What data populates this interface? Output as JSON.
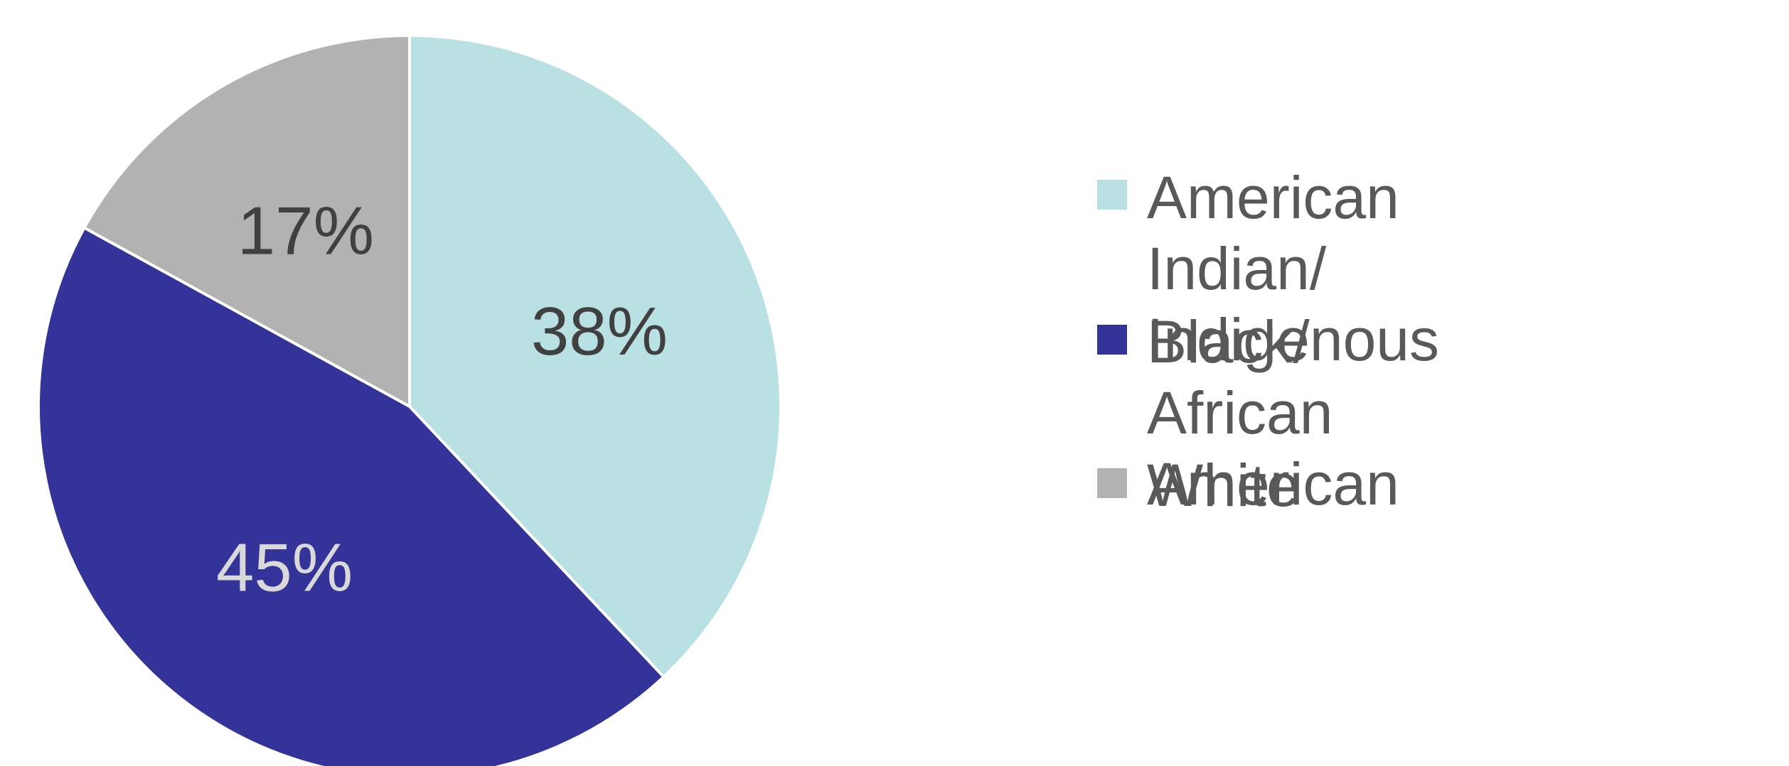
{
  "chart_data": {
    "type": "pie",
    "title": "",
    "start_angle_deg": 0,
    "direction": "clockwise",
    "slices": [
      {
        "label": "American Indian/ Indigenous",
        "value": 38,
        "display": "38%",
        "color": "#b9e0e3",
        "label_color": "#404040"
      },
      {
        "label": "Black/ African American",
        "value": 45,
        "display": "45%",
        "color": "#333399",
        "label_color": "#d9d9d9"
      },
      {
        "label": "White",
        "value": 17,
        "display": "17%",
        "color": "#b2b2b2",
        "label_color": "#404040"
      }
    ],
    "legend": {
      "placement": "right",
      "entries": [
        {
          "line1": "American Indian/",
          "line2": "Indigenous",
          "color": "#b9e0e3"
        },
        {
          "line1": "Black/ African American",
          "line2": "",
          "color": "#333399"
        },
        {
          "line1": "White",
          "line2": "",
          "color": "#b2b2b2"
        }
      ]
    }
  }
}
